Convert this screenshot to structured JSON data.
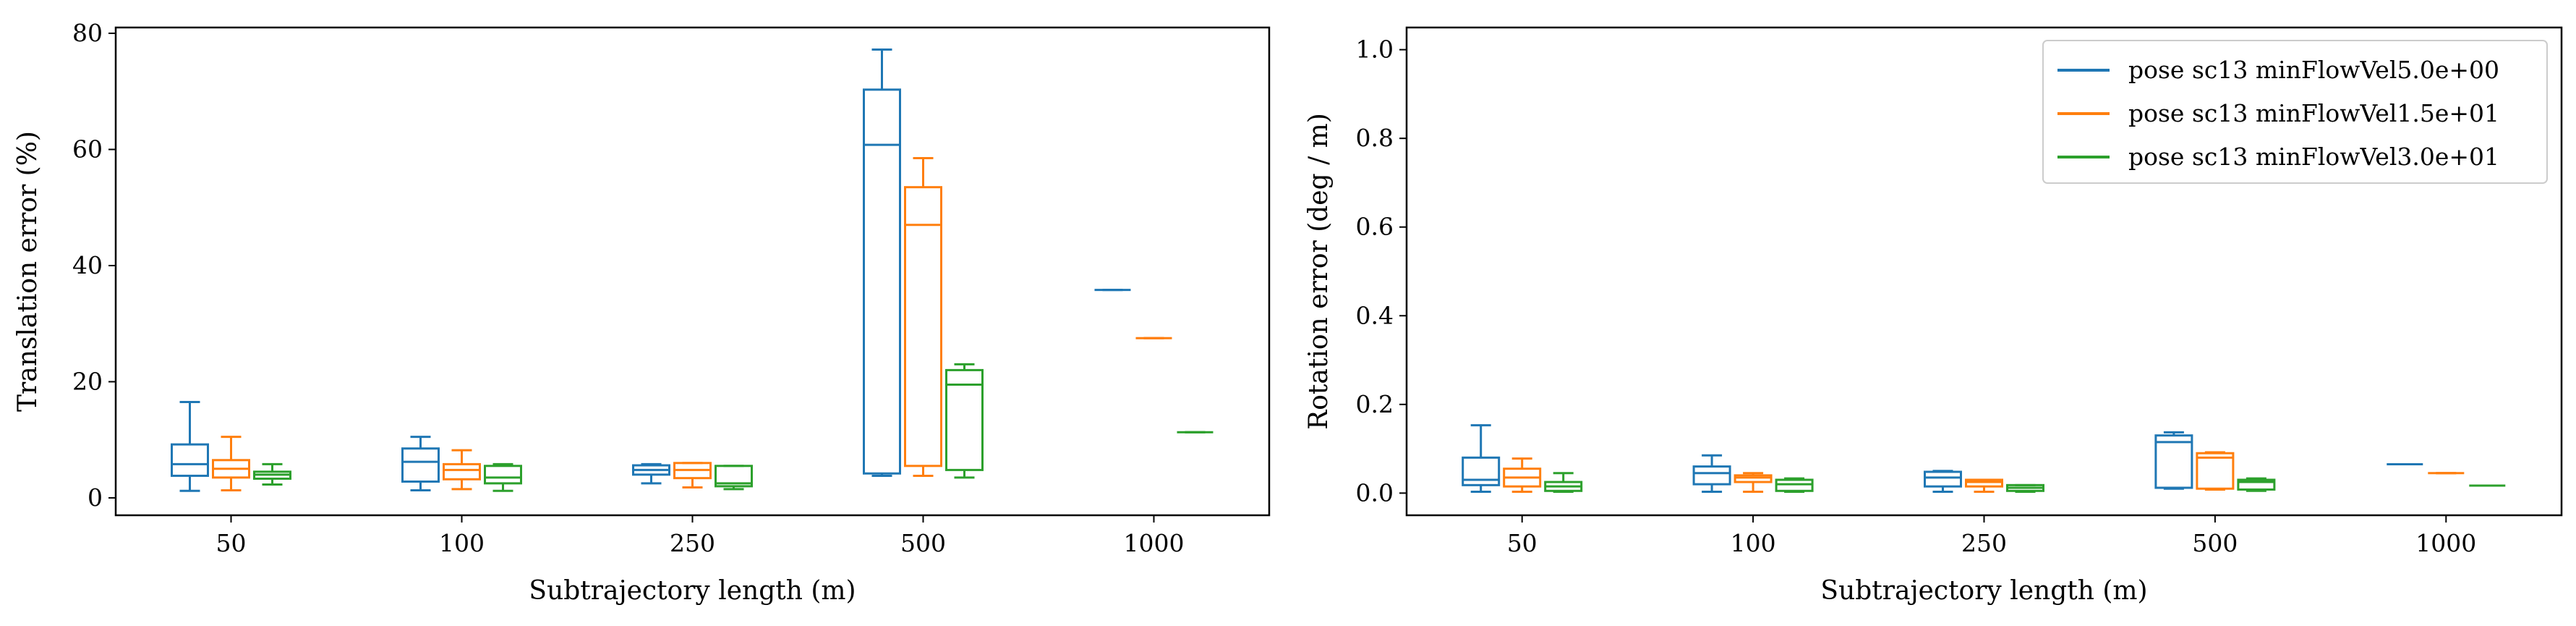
{
  "chart_data": [
    {
      "type": "box",
      "xlabel": "Subtrajectory length (m)",
      "ylabel": "Translation error (%)",
      "categories": [
        "50",
        "100",
        "250",
        "500",
        "1000"
      ],
      "ylim": [
        -3,
        81
      ],
      "yticks": [
        0,
        20,
        40,
        60,
        80
      ],
      "grid": false,
      "series": [
        {
          "name": "pose sc13 minFlowVel5.0e+00",
          "color": "#1f77b4",
          "boxes": [
            {
              "min": 1.2,
              "q1": 3.8,
              "median": 5.8,
              "q3": 9.2,
              "max": 16.5
            },
            {
              "min": 1.3,
              "q1": 2.8,
              "median": 6.2,
              "q3": 8.5,
              "max": 10.5
            },
            {
              "min": 2.5,
              "q1": 4.0,
              "median": 4.8,
              "q3": 5.6,
              "max": 5.8
            },
            {
              "min": 3.8,
              "q1": 4.2,
              "median": 60.8,
              "q3": 70.3,
              "max": 77.2
            },
            {
              "min": 35.8,
              "q1": 35.8,
              "median": 35.8,
              "q3": 35.8,
              "max": 35.8
            }
          ]
        },
        {
          "name": "pose sc13 minFlowVel1.5e+01",
          "color": "#ff7f0e",
          "boxes": [
            {
              "min": 1.3,
              "q1": 3.5,
              "median": 5.0,
              "q3": 6.5,
              "max": 10.5
            },
            {
              "min": 1.5,
              "q1": 3.2,
              "median": 4.8,
              "q3": 5.8,
              "max": 8.2
            },
            {
              "min": 1.8,
              "q1": 3.4,
              "median": 4.8,
              "q3": 6.0,
              "max": 6.0
            },
            {
              "min": 3.8,
              "q1": 5.5,
              "median": 47.0,
              "q3": 53.5,
              "max": 58.5
            },
            {
              "min": 27.5,
              "q1": 27.5,
              "median": 27.5,
              "q3": 27.5,
              "max": 27.5
            }
          ]
        },
        {
          "name": "pose sc13 minFlowVel3.0e+01",
          "color": "#2ca02c",
          "boxes": [
            {
              "min": 2.3,
              "q1": 3.3,
              "median": 4.0,
              "q3": 4.5,
              "max": 5.8
            },
            {
              "min": 1.2,
              "q1": 2.5,
              "median": 3.5,
              "q3": 5.5,
              "max": 5.8
            },
            {
              "min": 1.5,
              "q1": 2.0,
              "median": 2.5,
              "q3": 5.5,
              "max": 5.5
            },
            {
              "min": 3.5,
              "q1": 4.8,
              "median": 19.5,
              "q3": 22.0,
              "max": 23.0
            },
            {
              "min": 11.3,
              "q1": 11.3,
              "median": 11.3,
              "q3": 11.3,
              "max": 11.3
            }
          ]
        }
      ]
    },
    {
      "type": "box",
      "xlabel": "Subtrajectory length (m)",
      "ylabel": "Rotation error (deg / m)",
      "categories": [
        "50",
        "100",
        "250",
        "500",
        "1000"
      ],
      "ylim": [
        -0.05,
        1.05
      ],
      "yticks": [
        0.0,
        0.2,
        0.4,
        0.6,
        0.8,
        1.0
      ],
      "ytick_labels": [
        "0.0",
        "0.2",
        "0.4",
        "0.6",
        "0.8",
        "1.0"
      ],
      "grid": false,
      "legend_position": "top-right",
      "series": [
        {
          "name": "pose sc13 minFlowVel5.0e+00",
          "color": "#1f77b4",
          "boxes": [
            {
              "min": 0.003,
              "q1": 0.018,
              "median": 0.03,
              "q3": 0.08,
              "max": 0.153
            },
            {
              "min": 0.003,
              "q1": 0.02,
              "median": 0.045,
              "q3": 0.06,
              "max": 0.085
            },
            {
              "min": 0.003,
              "q1": 0.015,
              "median": 0.035,
              "q3": 0.048,
              "max": 0.05
            },
            {
              "min": 0.01,
              "q1": 0.012,
              "median": 0.115,
              "q3": 0.13,
              "max": 0.137
            },
            {
              "min": 0.065,
              "q1": 0.065,
              "median": 0.065,
              "q3": 0.065,
              "max": 0.065
            }
          ]
        },
        {
          "name": "pose sc13 minFlowVel1.5e+01",
          "color": "#ff7f0e",
          "boxes": [
            {
              "min": 0.003,
              "q1": 0.015,
              "median": 0.035,
              "q3": 0.055,
              "max": 0.078
            },
            {
              "min": 0.003,
              "q1": 0.025,
              "median": 0.035,
              "q3": 0.04,
              "max": 0.045
            },
            {
              "min": 0.003,
              "q1": 0.015,
              "median": 0.025,
              "q3": 0.03,
              "max": 0.03
            },
            {
              "min": 0.008,
              "q1": 0.01,
              "median": 0.08,
              "q3": 0.09,
              "max": 0.092
            },
            {
              "min": 0.045,
              "q1": 0.045,
              "median": 0.045,
              "q3": 0.045,
              "max": 0.045
            }
          ]
        },
        {
          "name": "pose sc13 minFlowVel3.0e+01",
          "color": "#2ca02c",
          "boxes": [
            {
              "min": 0.003,
              "q1": 0.005,
              "median": 0.015,
              "q3": 0.025,
              "max": 0.045
            },
            {
              "min": 0.003,
              "q1": 0.005,
              "median": 0.02,
              "q3": 0.03,
              "max": 0.033
            },
            {
              "min": 0.003,
              "q1": 0.005,
              "median": 0.012,
              "q3": 0.018,
              "max": 0.018
            },
            {
              "min": 0.005,
              "q1": 0.008,
              "median": 0.025,
              "q3": 0.03,
              "max": 0.033
            },
            {
              "min": 0.017,
              "q1": 0.017,
              "median": 0.017,
              "q3": 0.017,
              "max": 0.017
            }
          ]
        }
      ]
    }
  ]
}
